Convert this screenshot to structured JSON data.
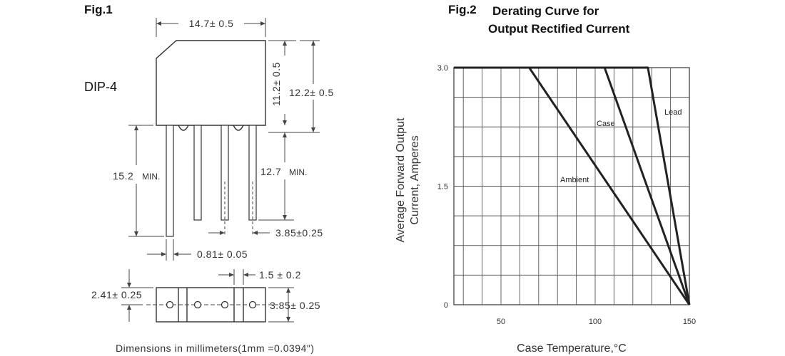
{
  "fig1": {
    "label": "Fig.1",
    "package": "DIP-4",
    "dims": {
      "width": "14.7± 0.5",
      "body_height": "11.2± 0.5",
      "total_height": "12.2± 0.5",
      "lead_length": "15.2",
      "lead_min": "MIN.",
      "lead_length_right": "12.7",
      "lead_right_min": "MIN.",
      "pitch_bottom": "3.85±0.25",
      "lead_width": "0.81± 0.05",
      "pin_gap": "1.5 ± 0.2",
      "side_thickness": "2.41± 0.25",
      "side_height": "3.85± 0.25"
    },
    "footer": "Dimensions in millimeters(1mm =0.0394″)"
  },
  "fig2": {
    "label": "Fig.2",
    "title_line1": "Derating Curve for",
    "title_line2": "Output Rectified Current"
  },
  "chart_data": {
    "type": "line",
    "title": "Derating Curve for Output Rectified Current",
    "xlabel": "Case Temperature,°C",
    "ylabel_line1": "Average Forward Output",
    "ylabel_line2": "Current, Amperes",
    "xlim": [
      25,
      150
    ],
    "ylim": [
      0,
      3.0
    ],
    "x_ticks": [
      50,
      100,
      150
    ],
    "y_ticks": [
      {
        "value": 0,
        "label": "0"
      },
      {
        "value": 1.5,
        "label": "1.5"
      },
      {
        "value": 3.0,
        "label": "3.0"
      }
    ],
    "grid": true,
    "series": [
      {
        "name": "Ambient",
        "x": [
          25,
          65,
          150
        ],
        "y": [
          3.0,
          3.0,
          0
        ]
      },
      {
        "name": "Case",
        "x": [
          25,
          105,
          150
        ],
        "y": [
          3.0,
          3.0,
          0
        ]
      },
      {
        "name": "Lead",
        "x": [
          25,
          128,
          150
        ],
        "y": [
          3.0,
          3.0,
          0
        ]
      }
    ]
  }
}
